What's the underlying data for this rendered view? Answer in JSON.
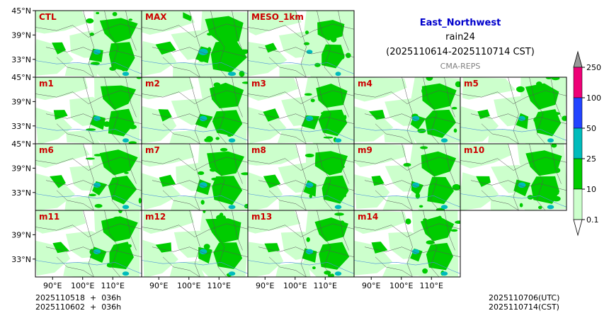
{
  "title": {
    "region": "East_Northwest",
    "variable": "rain24",
    "period": "(2025110614-2025110714 CST)",
    "model": "CMA-REPS"
  },
  "colors": {
    "region_title": "#0000cc",
    "panel_label": "#cc0000",
    "model_label": "#808080",
    "boundary": "#555555",
    "river": "#4a90d9"
  },
  "chart_data": {
    "type": "heatmap",
    "description_type": "ensemble precipitation panel grid",
    "panels": [
      {
        "label": "CTL",
        "row": 0,
        "col": 0,
        "intensity": 0.55
      },
      {
        "label": "MAX",
        "row": 0,
        "col": 1,
        "intensity": 0.9
      },
      {
        "label": "MESO_1km",
        "row": 0,
        "col": 2,
        "intensity": 0.35
      },
      {
        "label": "m1",
        "row": 1,
        "col": 0,
        "intensity": 0.5
      },
      {
        "label": "m2",
        "row": 1,
        "col": 1,
        "intensity": 0.6
      },
      {
        "label": "m3",
        "row": 1,
        "col": 2,
        "intensity": 0.55
      },
      {
        "label": "m4",
        "row": 1,
        "col": 3,
        "intensity": 0.55
      },
      {
        "label": "m5",
        "row": 1,
        "col": 4,
        "intensity": 0.5
      },
      {
        "label": "m6",
        "row": 2,
        "col": 0,
        "intensity": 0.55
      },
      {
        "label": "m7",
        "row": 2,
        "col": 1,
        "intensity": 0.65
      },
      {
        "label": "m8",
        "row": 2,
        "col": 2,
        "intensity": 0.6
      },
      {
        "label": "m9",
        "row": 2,
        "col": 3,
        "intensity": 0.55
      },
      {
        "label": "m10",
        "row": 2,
        "col": 4,
        "intensity": 0.6
      },
      {
        "label": "m11",
        "row": 3,
        "col": 0,
        "intensity": 0.55
      },
      {
        "label": "m12",
        "row": 3,
        "col": 1,
        "intensity": 0.6
      },
      {
        "label": "m13",
        "row": 3,
        "col": 2,
        "intensity": 0.55
      },
      {
        "label": "m14",
        "row": 3,
        "col": 3,
        "intensity": 0.55
      }
    ],
    "y_ticks": [
      "45°N",
      "39°N",
      "33°N"
    ],
    "x_ticks": [
      "90°E",
      "100°E",
      "110°E"
    ],
    "colorbar": {
      "levels": [
        "0.1",
        "10",
        "25",
        "50",
        "100",
        "250"
      ],
      "colors": [
        "#ccffcc",
        "#00cc00",
        "#00bbbb",
        "#2244ff",
        "#ee0077"
      ],
      "over_color": "#999999",
      "under_color": "#ffffff"
    }
  },
  "footer": {
    "left_line1": "2025110518  +  036h",
    "left_line2": "2025110602  +  036h",
    "right_line1": "2025110706(UTC)",
    "right_line2": "2025110714(CST)"
  }
}
